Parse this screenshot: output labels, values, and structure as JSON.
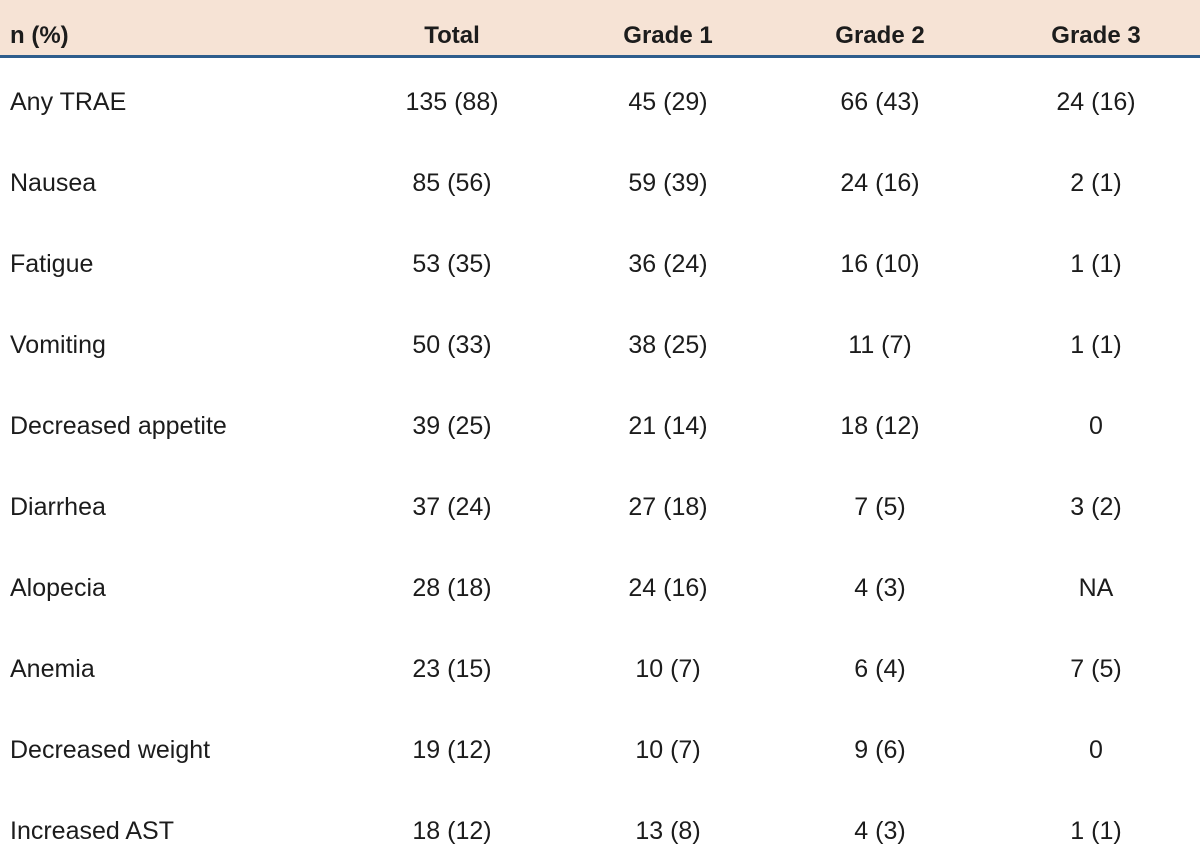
{
  "table": {
    "columns": [
      "n (%)",
      "Total",
      "Grade 1",
      "Grade 2",
      "Grade 3"
    ],
    "rows": [
      [
        "Any TRAE",
        "135 (88)",
        "45 (29)",
        "66 (43)",
        "24 (16)"
      ],
      [
        "Nausea",
        "85 (56)",
        "59 (39)",
        "24 (16)",
        "2 (1)"
      ],
      [
        "Fatigue",
        "53 (35)",
        "36 (24)",
        "16 (10)",
        "1 (1)"
      ],
      [
        "Vomiting",
        "50 (33)",
        "38 (25)",
        "11 (7)",
        "1 (1)"
      ],
      [
        "Decreased appetite",
        "39 (25)",
        "21 (14)",
        "18 (12)",
        "0"
      ],
      [
        "Diarrhea",
        "37 (24)",
        "27 (18)",
        "7 (5)",
        "3 (2)"
      ],
      [
        "Alopecia",
        "28 (18)",
        "24 (16)",
        "4 (3)",
        "NA"
      ],
      [
        "Anemia",
        "23 (15)",
        "10 (7)",
        "6 (4)",
        "7 (5)"
      ],
      [
        "Decreased weight",
        "19 (12)",
        "10 (7)",
        "9 (6)",
        "0"
      ],
      [
        "Increased AST",
        "18 (12)",
        "13 (8)",
        "4 (3)",
        "1 (1)"
      ]
    ]
  },
  "colors": {
    "header_background": "#f6e3d5",
    "header_rule": "#2e5d8c",
    "text": "#1c1c1c"
  }
}
